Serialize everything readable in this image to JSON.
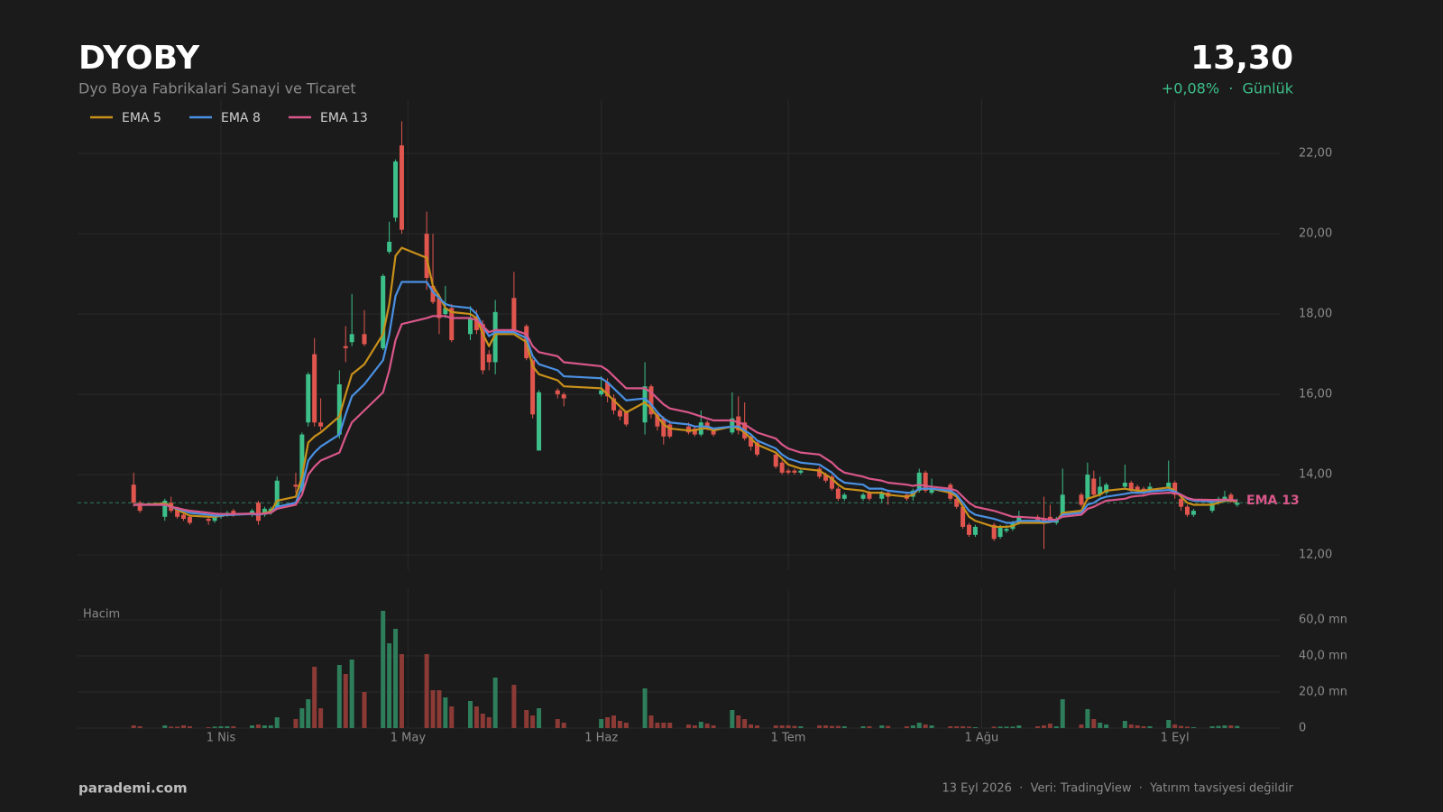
{
  "header": {
    "symbol": "DYOBY",
    "name": "Dyo Boya Fabrikalari Sanayi ve Ticaret",
    "price": "13,30",
    "change": "+0,08%  ·  Günlük"
  },
  "footer": {
    "brand": "parademi.com",
    "note": "13 Eyl 2026  ·  Veri: TradingView  ·  Yatırım tavsiyesi değildir"
  },
  "chart_data": {
    "type": "candlestick",
    "up_color": "#3dbf8a",
    "down_color": "#e0564e",
    "grid": true,
    "xlim": [
      "03-09",
      "09-20"
    ],
    "xticks": [
      {
        "value": "04-01",
        "label": "1 Nis"
      },
      {
        "value": "05-01",
        "label": "1 May"
      },
      {
        "value": "06-01",
        "label": "1 Haz"
      },
      {
        "value": "07-01",
        "label": "1 Tem"
      },
      {
        "value": "08-01",
        "label": "1 Ağu"
      },
      {
        "value": "09-01",
        "label": "1 Eyl"
      }
    ],
    "ylim": [
      11.62,
      23.35
    ],
    "yticks": [
      {
        "value": 12,
        "label": "12,00"
      },
      {
        "value": 14,
        "label": "14,00"
      },
      {
        "value": 16,
        "label": "16,00"
      },
      {
        "value": 18,
        "label": "18,00"
      },
      {
        "value": 20,
        "label": "20,00"
      },
      {
        "value": 22,
        "label": "22,00"
      }
    ],
    "last_price": 13.3,
    "x": [
      "03-18",
      "03-19",
      "03-23",
      "03-24",
      "03-25",
      "03-26",
      "03-27",
      "03-30",
      "03-31",
      "04-01",
      "04-02",
      "04-03",
      "04-06",
      "04-07",
      "04-08",
      "04-09",
      "04-10",
      "04-13",
      "04-14",
      "04-15",
      "04-16",
      "04-17",
      "04-20",
      "04-21",
      "04-22",
      "04-24",
      "04-27",
      "04-28",
      "04-29",
      "04-30",
      "05-04",
      "05-05",
      "05-06",
      "05-07",
      "05-08",
      "05-11",
      "05-12",
      "05-13",
      "05-14",
      "05-15",
      "05-18",
      "05-20",
      "05-21",
      "05-22",
      "05-25",
      "05-26",
      "06-01",
      "06-02",
      "06-03",
      "06-04",
      "06-05",
      "06-08",
      "06-09",
      "06-10",
      "06-11",
      "06-12",
      "06-15",
      "06-16",
      "06-17",
      "06-18",
      "06-19",
      "06-22",
      "06-23",
      "06-24",
      "06-25",
      "06-26",
      "06-29",
      "06-30",
      "07-01",
      "07-02",
      "07-03",
      "07-06",
      "07-07",
      "07-08",
      "07-09",
      "07-10",
      "07-13",
      "07-14",
      "07-16",
      "07-17",
      "07-20",
      "07-21",
      "07-22",
      "07-23",
      "07-24",
      "07-27",
      "07-28",
      "07-29",
      "07-30",
      "07-31",
      "08-03",
      "08-04",
      "08-05",
      "08-06",
      "08-07",
      "08-10",
      "08-11",
      "08-12",
      "08-13",
      "08-14",
      "08-17",
      "08-18",
      "08-19",
      "08-20",
      "08-21",
      "08-24",
      "08-25",
      "08-26",
      "08-27",
      "08-28",
      "08-31",
      "09-01",
      "09-02",
      "09-03",
      "09-04",
      "09-07",
      "09-08",
      "09-09",
      "09-10",
      "09-11"
    ],
    "open": [
      13.75,
      13.3,
      12.95,
      13.3,
      13.15,
      13.0,
      12.95,
      12.9,
      12.85,
      12.95,
      13.0,
      13.1,
      13.0,
      13.3,
      13.0,
      13.05,
      13.2,
      13.75,
      13.6,
      15.3,
      17.0,
      15.3,
      15.0,
      17.2,
      17.3,
      17.5,
      17.15,
      19.55,
      20.4,
      22.2,
      20.0,
      18.7,
      18.4,
      18.0,
      18.15,
      17.5,
      17.9,
      17.75,
      17.0,
      16.8,
      18.4,
      17.7,
      16.85,
      14.6,
      16.1,
      16.0,
      16.0,
      16.3,
      15.9,
      15.6,
      15.55,
      15.3,
      16.2,
      15.5,
      15.4,
      15.25,
      15.2,
      15.15,
      15.0,
      15.3,
      15.1,
      15.05,
      15.45,
      15.3,
      14.95,
      14.8,
      14.5,
      14.3,
      14.1,
      14.1,
      14.05,
      14.15,
      14.0,
      13.95,
      13.65,
      13.4,
      13.4,
      13.55,
      13.4,
      13.55,
      13.5,
      13.45,
      13.6,
      14.05,
      13.55,
      13.75,
      13.4,
      13.2,
      12.75,
      12.5,
      12.75,
      12.45,
      12.6,
      12.65,
      12.8,
      12.95,
      12.9,
      12.95,
      12.8,
      13.0,
      13.5,
      13.4,
      13.9,
      13.5,
      13.55,
      13.7,
      13.8,
      13.7,
      13.65,
      13.6,
      13.65,
      13.8,
      13.4,
      13.2,
      13.0,
      13.1,
      13.3,
      13.35,
      13.5,
      13.25
    ],
    "high": [
      14.05,
      13.35,
      13.4,
      13.45,
      13.2,
      13.05,
      13.0,
      12.95,
      13.0,
      13.05,
      13.1,
      13.15,
      13.15,
      13.35,
      13.2,
      13.2,
      13.95,
      14.05,
      15.05,
      16.55,
      17.4,
      15.9,
      16.6,
      17.7,
      18.5,
      18.1,
      19.0,
      20.3,
      21.85,
      22.8,
      20.55,
      20.0,
      18.5,
      18.7,
      18.25,
      18.2,
      18.1,
      17.85,
      17.1,
      18.35,
      19.05,
      17.75,
      16.9,
      16.1,
      16.15,
      16.05,
      16.45,
      16.4,
      16.0,
      15.65,
      15.6,
      16.8,
      16.25,
      15.55,
      15.45,
      15.35,
      15.3,
      15.2,
      15.6,
      15.35,
      15.15,
      16.05,
      15.95,
      15.8,
      15.0,
      14.85,
      14.55,
      14.35,
      14.15,
      14.15,
      14.15,
      14.2,
      14.05,
      14.0,
      13.7,
      13.55,
      13.55,
      13.6,
      13.6,
      13.6,
      13.55,
      13.65,
      14.15,
      14.1,
      13.9,
      13.8,
      13.45,
      13.25,
      12.8,
      12.75,
      12.8,
      12.75,
      12.75,
      12.85,
      13.1,
      13.0,
      13.45,
      13.25,
      12.95,
      14.15,
      13.55,
      14.3,
      14.1,
      13.95,
      13.8,
      14.25,
      13.85,
      13.75,
      13.7,
      13.8,
      14.35,
      13.85,
      13.45,
      13.25,
      13.15,
      13.35,
      13.45,
      13.6,
      13.55,
      13.4
    ],
    "low": [
      13.2,
      13.05,
      12.85,
      13.05,
      12.9,
      12.85,
      12.75,
      12.75,
      12.8,
      12.9,
      12.95,
      12.95,
      12.95,
      12.75,
      12.95,
      13.0,
      13.15,
      13.55,
      13.5,
      15.2,
      15.2,
      15.1,
      14.9,
      16.8,
      17.2,
      17.2,
      17.1,
      19.5,
      20.3,
      20.0,
      18.6,
      18.25,
      17.5,
      17.9,
      17.3,
      17.35,
      17.5,
      16.5,
      16.6,
      16.5,
      17.5,
      16.85,
      15.4,
      14.6,
      15.9,
      15.7,
      15.95,
      15.8,
      15.5,
      15.35,
      15.2,
      15.0,
      15.4,
      15.1,
      14.75,
      14.9,
      15.0,
      14.95,
      14.95,
      15.1,
      14.95,
      15.0,
      15.0,
      14.85,
      14.6,
      14.45,
      14.15,
      14.0,
      14.0,
      14.0,
      14.0,
      13.9,
      13.8,
      13.6,
      13.35,
      13.35,
      13.35,
      13.35,
      13.3,
      13.25,
      13.35,
      13.35,
      13.55,
      13.55,
      13.5,
      13.35,
      13.15,
      12.65,
      12.45,
      12.45,
      12.35,
      12.4,
      12.55,
      12.6,
      12.75,
      12.8,
      12.15,
      12.8,
      12.75,
      12.95,
      13.2,
      13.35,
      13.45,
      13.45,
      13.5,
      13.65,
      13.55,
      13.55,
      13.5,
      13.55,
      13.6,
      13.4,
      13.1,
      12.95,
      12.95,
      13.05,
      13.25,
      13.3,
      13.3,
      13.2
    ],
    "close": [
      13.3,
      13.1,
      13.35,
      13.1,
      12.95,
      12.9,
      12.8,
      12.85,
      12.95,
      13.0,
      13.05,
      13.0,
      13.1,
      12.85,
      13.15,
      13.15,
      13.85,
      13.7,
      15.0,
      16.5,
      15.3,
      15.2,
      16.25,
      17.15,
      17.5,
      17.25,
      18.95,
      19.8,
      21.8,
      20.1,
      18.9,
      18.3,
      17.9,
      18.15,
      17.35,
      17.9,
      17.6,
      16.6,
      16.8,
      18.05,
      17.6,
      16.9,
      15.5,
      16.05,
      16.0,
      15.9,
      16.1,
      15.95,
      15.6,
      15.45,
      15.25,
      16.2,
      15.5,
      15.2,
      14.95,
      14.95,
      15.05,
      15.0,
      15.3,
      15.15,
      15.0,
      15.4,
      15.1,
      14.9,
      14.7,
      14.5,
      14.2,
      14.05,
      14.05,
      14.05,
      14.1,
      13.95,
      13.85,
      13.65,
      13.4,
      13.5,
      13.5,
      13.4,
      13.55,
      13.45,
      13.4,
      13.6,
      14.05,
      13.6,
      13.65,
      13.4,
      13.2,
      12.7,
      12.5,
      12.7,
      12.4,
      12.7,
      12.65,
      12.8,
      12.95,
      12.85,
      12.8,
      12.85,
      12.9,
      13.5,
      13.25,
      14.0,
      13.5,
      13.7,
      13.75,
      13.8,
      13.6,
      13.6,
      13.55,
      13.7,
      13.8,
      13.5,
      13.2,
      13.0,
      13.1,
      13.3,
      13.4,
      13.45,
      13.35,
      13.3
    ],
    "series": [
      {
        "name": "EMA 5",
        "color": "#c8901a",
        "values": [
          13.25,
          13.25,
          13.28,
          13.22,
          13.12,
          13.05,
          12.98,
          12.95,
          12.95,
          12.97,
          13.0,
          13.0,
          13.03,
          13.0,
          13.05,
          13.08,
          13.35,
          13.45,
          13.95,
          14.8,
          14.95,
          15.05,
          15.45,
          16.0,
          16.5,
          16.75,
          17.5,
          18.25,
          19.45,
          19.65,
          19.4,
          18.7,
          18.45,
          18.15,
          18.05,
          18.0,
          17.9,
          17.5,
          17.2,
          17.5,
          17.5,
          17.3,
          16.7,
          16.5,
          16.35,
          16.2,
          16.15,
          16.0,
          15.85,
          15.7,
          15.55,
          15.8,
          15.65,
          15.45,
          15.25,
          15.15,
          15.1,
          15.1,
          15.15,
          15.15,
          15.1,
          15.2,
          15.15,
          15.05,
          14.9,
          14.75,
          14.55,
          14.4,
          14.25,
          14.2,
          14.15,
          14.1,
          14.0,
          13.9,
          13.75,
          13.65,
          13.6,
          13.55,
          13.55,
          13.5,
          13.45,
          13.5,
          13.65,
          13.65,
          13.65,
          13.55,
          13.45,
          13.2,
          12.95,
          12.85,
          12.7,
          12.7,
          12.7,
          12.72,
          12.8,
          12.8,
          12.8,
          12.82,
          12.85,
          13.05,
          13.1,
          13.4,
          13.45,
          13.5,
          13.6,
          13.65,
          13.62,
          13.6,
          13.6,
          13.62,
          13.68,
          13.6,
          13.45,
          13.3,
          13.25,
          13.25,
          13.3,
          13.35,
          13.35,
          13.33
        ]
      },
      {
        "name": "EMA 8",
        "color": "#4a90e2",
        "values": [
          13.25,
          13.25,
          13.25,
          13.2,
          13.15,
          13.1,
          13.05,
          13.0,
          12.98,
          12.98,
          13.0,
          13.0,
          13.02,
          13.0,
          13.03,
          13.05,
          13.2,
          13.3,
          13.7,
          14.35,
          14.55,
          14.7,
          15.0,
          15.5,
          15.95,
          16.25,
          16.85,
          17.5,
          18.45,
          18.8,
          18.8,
          18.55,
          18.4,
          18.25,
          18.2,
          18.15,
          18.0,
          17.7,
          17.45,
          17.55,
          17.55,
          17.4,
          16.95,
          16.75,
          16.6,
          16.45,
          16.4,
          16.3,
          16.15,
          16.0,
          15.85,
          15.9,
          15.75,
          15.55,
          15.4,
          15.3,
          15.25,
          15.2,
          15.2,
          15.2,
          15.15,
          15.2,
          15.2,
          15.1,
          15.0,
          14.85,
          14.65,
          14.5,
          14.4,
          14.35,
          14.3,
          14.25,
          14.15,
          14.05,
          13.9,
          13.8,
          13.75,
          13.65,
          13.65,
          13.6,
          13.55,
          13.55,
          13.65,
          13.65,
          13.65,
          13.6,
          13.5,
          13.3,
          13.1,
          13.0,
          12.9,
          12.85,
          12.8,
          12.8,
          12.85,
          12.85,
          12.83,
          12.83,
          12.85,
          13.0,
          13.05,
          13.25,
          13.3,
          13.4,
          13.45,
          13.52,
          13.55,
          13.55,
          13.55,
          13.58,
          13.62,
          13.58,
          13.5,
          13.4,
          13.35,
          13.33,
          13.35,
          13.37,
          13.37,
          13.35
        ]
      },
      {
        "name": "EMA 13",
        "color": "#d9578a",
        "values": [
          13.25,
          13.25,
          13.25,
          13.2,
          13.17,
          13.13,
          13.1,
          13.05,
          13.03,
          13.02,
          13.02,
          13.02,
          13.03,
          13.02,
          13.03,
          13.05,
          13.15,
          13.25,
          13.5,
          14.0,
          14.2,
          14.35,
          14.55,
          14.95,
          15.3,
          15.6,
          16.05,
          16.6,
          17.35,
          17.75,
          17.9,
          17.95,
          17.95,
          17.95,
          17.9,
          17.9,
          17.85,
          17.7,
          17.55,
          17.6,
          17.6,
          17.5,
          17.2,
          17.05,
          16.95,
          16.8,
          16.7,
          16.6,
          16.45,
          16.3,
          16.15,
          16.15,
          16.05,
          15.9,
          15.75,
          15.65,
          15.55,
          15.5,
          15.45,
          15.4,
          15.35,
          15.35,
          15.3,
          15.25,
          15.15,
          15.05,
          14.9,
          14.75,
          14.65,
          14.6,
          14.55,
          14.5,
          14.4,
          14.3,
          14.15,
          14.05,
          13.95,
          13.9,
          13.85,
          13.8,
          13.75,
          13.72,
          13.75,
          13.72,
          13.7,
          13.65,
          13.6,
          13.45,
          13.3,
          13.2,
          13.1,
          13.05,
          13.0,
          12.95,
          12.95,
          12.92,
          12.9,
          12.88,
          12.88,
          12.95,
          13.0,
          13.15,
          13.2,
          13.28,
          13.35,
          13.4,
          13.45,
          13.47,
          13.48,
          13.52,
          13.55,
          13.54,
          13.5,
          13.42,
          13.38,
          13.37,
          13.37,
          13.38,
          13.37,
          13.35
        ]
      }
    ],
    "volume": {
      "label": "Hacim",
      "up_color": "#2e7d5b",
      "down_color": "#8b3a36",
      "ylim": [
        0,
        77
      ],
      "yticks": [
        0,
        {
          "value": 20,
          "label": "20,0 mn"
        },
        {
          "value": 40,
          "label": "40,0 mn"
        },
        {
          "value": 60,
          "label": "60,0 mn"
        }
      ],
      "values": [
        1.5,
        1,
        1.5,
        0.8,
        0.8,
        1.5,
        1,
        0.5,
        0.8,
        1,
        1,
        1,
        1.5,
        2,
        1.5,
        1.5,
        6,
        5,
        11,
        16,
        34,
        11,
        35,
        30,
        38,
        20,
        65,
        47,
        55,
        41,
        41,
        21,
        21,
        17,
        12,
        15,
        12,
        8,
        6,
        28,
        24,
        10,
        7,
        11,
        5,
        3,
        5,
        6,
        7,
        4,
        3,
        22,
        7,
        3,
        3,
        3,
        2,
        1.5,
        3.5,
        2.5,
        1.5,
        10,
        7,
        5,
        2,
        1.5,
        1.5,
        1.5,
        1.5,
        1.2,
        1,
        1.5,
        1.5,
        1.2,
        1.2,
        1,
        1,
        1,
        1.5,
        1.2,
        1,
        1.5,
        3,
        2,
        1.5,
        1,
        1,
        1,
        0.8,
        0.5,
        0.8,
        0.8,
        0.8,
        0.8,
        1.5,
        1,
        1.5,
        2.5,
        1,
        16,
        2,
        10.5,
        5,
        3,
        2,
        4,
        2,
        1.5,
        1,
        1,
        4.5,
        2,
        1.2,
        0.8,
        0.5,
        1,
        1.2,
        1.5,
        1.5,
        1.2
      ]
    }
  }
}
